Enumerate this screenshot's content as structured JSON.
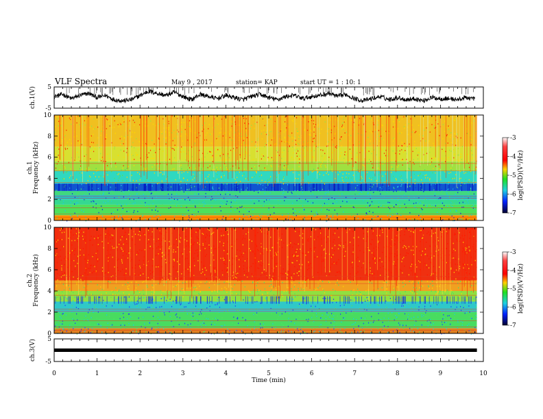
{
  "header": {
    "title": "VLF Spectra",
    "date": "May 9 , 2017",
    "station": "station= KAP",
    "start": "start  UT =   1 : 10: 1"
  },
  "chart_data": [
    {
      "type": "line",
      "name": "ch1-waveform",
      "ylabel": "ch.1(V)",
      "ylim": [
        -5,
        5
      ],
      "yticks": [
        "-5",
        "5"
      ],
      "xlim": [
        0,
        10
      ],
      "line_color": "#000000",
      "x": [
        0,
        0.2,
        0.4,
        0.6,
        0.8,
        1.0,
        1.2,
        1.4,
        1.6,
        1.8,
        2.0,
        2.2,
        2.4,
        2.6,
        2.8,
        3.0,
        3.2,
        3.4,
        3.6,
        3.8,
        4.0,
        4.2,
        4.4,
        4.6,
        4.8,
        5.0,
        5.2,
        5.4,
        5.6,
        5.8,
        6.0,
        6.2,
        6.4,
        6.6,
        6.8,
        7.0,
        7.2,
        7.4,
        7.6,
        7.8,
        8.0,
        8.2,
        8.4,
        8.6,
        8.8,
        9.0,
        9.2,
        9.4,
        9.6,
        9.8
      ],
      "y": [
        0.5,
        1.5,
        -0.5,
        1.0,
        2.0,
        0.0,
        1.0,
        -1.0,
        -1.5,
        -1.0,
        1.0,
        3.0,
        2.0,
        1.0,
        2.5,
        0.5,
        -1.0,
        1.5,
        0.5,
        -0.5,
        1.0,
        0.0,
        -1.0,
        0.5,
        1.5,
        0.0,
        -1.0,
        0.5,
        1.0,
        -0.5,
        0.5,
        1.0,
        2.0,
        0.5,
        1.5,
        -0.5,
        -1.5,
        -0.5,
        0.5,
        -1.0,
        0.0,
        -1.0,
        -0.5,
        -1.5,
        0.0,
        -0.5,
        -0.5,
        -1.0,
        0.0,
        -0.5
      ]
    },
    {
      "type": "heatmap",
      "name": "ch1-spectrogram",
      "ylabel": "ch.1\nFrequency (kHz)",
      "ylim": [
        0,
        10
      ],
      "yticks": [
        "0",
        "2",
        "4",
        "6",
        "8",
        "10"
      ],
      "xlim": [
        0,
        10
      ],
      "bands_khz": [
        [
          0,
          0.5,
          "#ff8c00"
        ],
        [
          0.5,
          1.5,
          "#4ee05a"
        ],
        [
          1.5,
          2.0,
          "#35d890"
        ],
        [
          2.0,
          2.4,
          "#20c0d0"
        ],
        [
          2.4,
          2.8,
          "#40d880"
        ],
        [
          2.8,
          3.5,
          "#1055d0"
        ],
        [
          3.5,
          4.7,
          "#30d8c0"
        ],
        [
          4.7,
          5.6,
          "#a0e040"
        ],
        [
          5.6,
          7.0,
          "#d8e030"
        ],
        [
          7.0,
          10.0,
          "#f0c020"
        ]
      ],
      "colorbar": {
        "label": "log(PSD)(V²/Hz)",
        "ticks": [
          "-3",
          "-4",
          "-5",
          "-6",
          "-7"
        ],
        "range": [
          -7,
          -3
        ]
      }
    },
    {
      "type": "heatmap",
      "name": "ch2-spectrogram",
      "ylabel": "ch.2\nFrequency (kHz)",
      "ylim": [
        0,
        10
      ],
      "yticks": [
        "0",
        "2",
        "4",
        "6",
        "8",
        "10"
      ],
      "xlim": [
        0,
        10
      ],
      "bands_khz": [
        [
          0,
          0.5,
          "#e08020"
        ],
        [
          0.5,
          2.0,
          "#48dc60"
        ],
        [
          2.0,
          3.0,
          "#30c8c8"
        ],
        [
          3.0,
          4.0,
          "#90e040"
        ],
        [
          4.0,
          5.0,
          "#f0a020"
        ],
        [
          5.0,
          10.0,
          "#f03010"
        ]
      ],
      "colorbar": {
        "label": "log(PSD)(V²/Hz)",
        "ticks": [
          "-3",
          "-4",
          "-5",
          "-6",
          "-7"
        ],
        "range": [
          -7,
          -3
        ]
      }
    },
    {
      "type": "line",
      "name": "ch3-waveform",
      "ylabel": "ch.3(V)",
      "ylim": [
        -5,
        5
      ],
      "yticks": [
        "-5",
        "5"
      ],
      "xlim": [
        0,
        10
      ],
      "line_color": "#000000",
      "x": [
        0,
        9.85
      ],
      "y": [
        0,
        0
      ]
    }
  ],
  "xaxis": {
    "label": "Time  (min)",
    "ticks": [
      "0",
      "1",
      "2",
      "3",
      "4",
      "5",
      "6",
      "7",
      "8",
      "9",
      "10"
    ]
  },
  "colors": {
    "red": "#ff0000",
    "yellow": "#ffd700",
    "green": "#20e020",
    "cyan": "#20d0e0",
    "blue": "#0020ff",
    "black": "#000000"
  }
}
